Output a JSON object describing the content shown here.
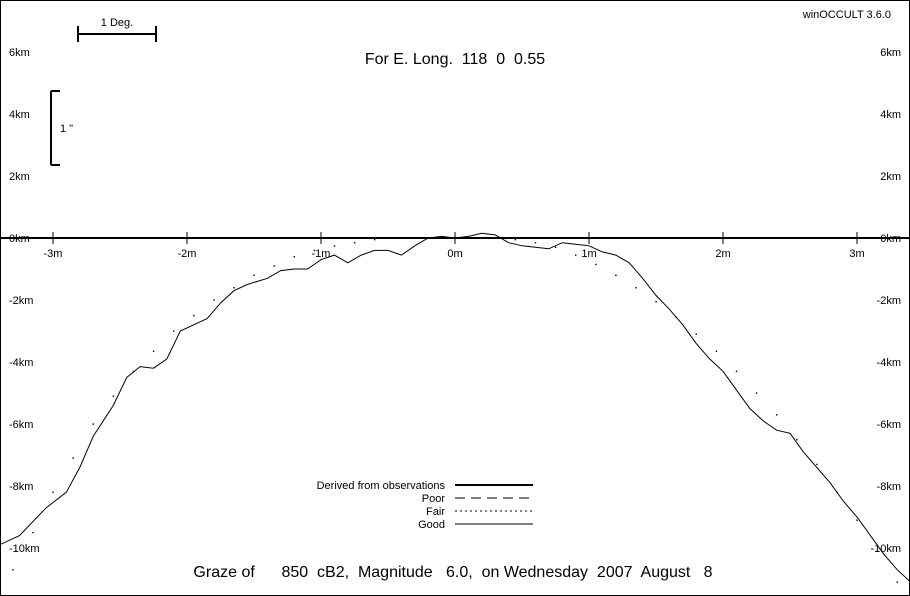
{
  "app_version": "winOCCULT 3.6.0",
  "header_title": "For E. Long.  118  0  0.55",
  "footer_title": "Graze of      850  cB2,  Magnitude   6.0,  on Wednesday  2007  August   8",
  "scale_bar_deg_label": "1 Deg.",
  "scale_bar_arcsec_label": "1 \"",
  "legend": [
    {
      "label": "Derived from observations",
      "style": "thick"
    },
    {
      "label": "Poor",
      "style": "dashed"
    },
    {
      "label": "Fair",
      "style": "dotted"
    },
    {
      "label": "Good",
      "style": "thin"
    }
  ],
  "chart_data": {
    "type": "line",
    "x_unit": "m",
    "y_unit": "km",
    "x_ticks": [
      {
        "v": -3,
        "label": "-3m"
      },
      {
        "v": -2,
        "label": "-2m"
      },
      {
        "v": -1,
        "label": "-1m"
      },
      {
        "v": 0,
        "label": "0m"
      },
      {
        "v": 1,
        "label": "1m"
      },
      {
        "v": 2,
        "label": "2m"
      },
      {
        "v": 3,
        "label": "3m"
      }
    ],
    "y_ticks": [
      {
        "v": 6,
        "label": "6km"
      },
      {
        "v": 4,
        "label": "4km"
      },
      {
        "v": 2,
        "label": "2km"
      },
      {
        "v": 0,
        "label": "0km"
      },
      {
        "v": -2,
        "label": "-2km"
      },
      {
        "v": -4,
        "label": "-4km"
      },
      {
        "v": -6,
        "label": "-6km"
      },
      {
        "v": -8,
        "label": "-8km"
      },
      {
        "v": -10,
        "label": "-10km"
      }
    ],
    "xlim": [
      -3.4,
      3.4
    ],
    "ylim": [
      -11.2,
      7.7
    ],
    "series": [
      {
        "style": "thin",
        "points": [
          [
            -3.4,
            -9.9
          ],
          [
            -3.25,
            -9.6
          ],
          [
            -3.05,
            -8.7
          ],
          [
            -2.9,
            -8.2
          ],
          [
            -2.8,
            -7.4
          ],
          [
            -2.7,
            -6.4
          ],
          [
            -2.55,
            -5.4
          ],
          [
            -2.45,
            -4.5
          ],
          [
            -2.35,
            -4.15
          ],
          [
            -2.25,
            -4.2
          ],
          [
            -2.15,
            -3.9
          ],
          [
            -2.05,
            -3.0
          ],
          [
            -1.95,
            -2.8
          ],
          [
            -1.85,
            -2.6
          ],
          [
            -1.75,
            -2.1
          ],
          [
            -1.65,
            -1.7
          ],
          [
            -1.55,
            -1.5
          ],
          [
            -1.4,
            -1.3
          ],
          [
            -1.3,
            -1.05
          ],
          [
            -1.2,
            -1.0
          ],
          [
            -1.1,
            -1.0
          ],
          [
            -1.0,
            -0.7
          ],
          [
            -0.9,
            -0.55
          ],
          [
            -0.8,
            -0.8
          ],
          [
            -0.7,
            -0.55
          ],
          [
            -0.6,
            -0.4
          ],
          [
            -0.5,
            -0.4
          ],
          [
            -0.4,
            -0.55
          ],
          [
            -0.3,
            -0.25
          ],
          [
            -0.2,
            0.0
          ],
          [
            -0.1,
            0.05
          ],
          [
            0.0,
            0.0
          ],
          [
            0.1,
            0.05
          ],
          [
            0.2,
            0.15
          ],
          [
            0.3,
            0.1
          ],
          [
            0.4,
            -0.15
          ],
          [
            0.5,
            -0.25
          ],
          [
            0.6,
            -0.3
          ],
          [
            0.7,
            -0.35
          ],
          [
            0.8,
            -0.15
          ],
          [
            0.9,
            -0.2
          ],
          [
            1.0,
            -0.25
          ],
          [
            1.1,
            -0.45
          ],
          [
            1.2,
            -0.55
          ],
          [
            1.3,
            -0.8
          ],
          [
            1.4,
            -1.3
          ],
          [
            1.5,
            -1.85
          ],
          [
            1.6,
            -2.3
          ],
          [
            1.7,
            -2.8
          ],
          [
            1.8,
            -3.4
          ],
          [
            1.9,
            -3.9
          ],
          [
            2.0,
            -4.3
          ],
          [
            2.1,
            -4.9
          ],
          [
            2.2,
            -5.5
          ],
          [
            2.3,
            -5.9
          ],
          [
            2.4,
            -6.2
          ],
          [
            2.5,
            -6.3
          ],
          [
            2.6,
            -6.9
          ],
          [
            2.7,
            -7.4
          ],
          [
            2.8,
            -7.9
          ],
          [
            2.9,
            -8.5
          ],
          [
            3.0,
            -9.0
          ],
          [
            3.1,
            -9.6
          ],
          [
            3.2,
            -10.2
          ],
          [
            3.3,
            -10.7
          ],
          [
            3.4,
            -11.1
          ]
        ]
      },
      {
        "style": "dotted",
        "points": [
          [
            -3.3,
            -10.7
          ],
          [
            -3.15,
            -9.5
          ],
          [
            -3.0,
            -8.2
          ],
          [
            -2.85,
            -7.1
          ],
          [
            -2.7,
            -6.0
          ],
          [
            -2.55,
            -5.1
          ],
          [
            -2.4,
            -4.3
          ],
          [
            -2.25,
            -3.65
          ],
          [
            -2.1,
            -3.0
          ],
          [
            -1.95,
            -2.5
          ],
          [
            -1.8,
            -2.0
          ],
          [
            -1.65,
            -1.6
          ],
          [
            -1.5,
            -1.2
          ],
          [
            -1.35,
            -0.9
          ],
          [
            -1.2,
            -0.6
          ],
          [
            -1.05,
            -0.4
          ],
          [
            -0.9,
            -0.25
          ],
          [
            -0.75,
            -0.15
          ],
          [
            -0.6,
            -0.05
          ],
          [
            -0.45,
            0.0
          ],
          [
            -0.3,
            0.0
          ],
          [
            -0.15,
            0.0
          ],
          [
            0.0,
            0.0
          ],
          [
            0.15,
            0.0
          ],
          [
            0.3,
            0.0
          ],
          [
            0.45,
            -0.05
          ],
          [
            0.6,
            -0.15
          ],
          [
            0.75,
            -0.3
          ],
          [
            0.9,
            -0.55
          ],
          [
            1.05,
            -0.85
          ],
          [
            1.2,
            -1.2
          ],
          [
            1.35,
            -1.6
          ],
          [
            1.5,
            -2.05
          ],
          [
            1.65,
            -2.55
          ],
          [
            1.8,
            -3.1
          ],
          [
            1.95,
            -3.65
          ],
          [
            2.1,
            -4.3
          ],
          [
            2.25,
            -5.0
          ],
          [
            2.4,
            -5.7
          ],
          [
            2.55,
            -6.5
          ],
          [
            2.7,
            -7.3
          ],
          [
            2.85,
            -8.2
          ],
          [
            3.0,
            -9.1
          ],
          [
            3.15,
            -10.1
          ],
          [
            3.3,
            -11.1
          ]
        ]
      }
    ]
  }
}
